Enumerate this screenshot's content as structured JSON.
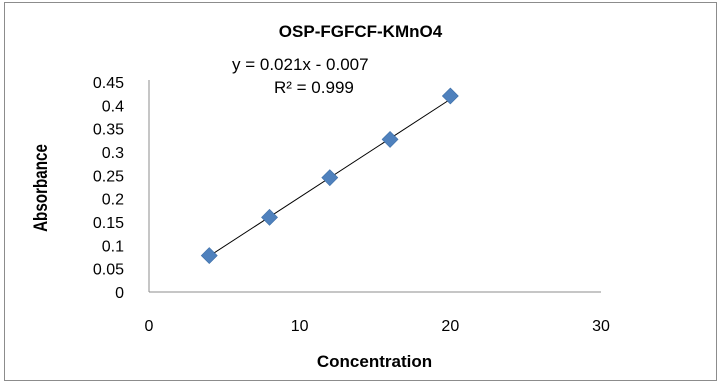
{
  "chart_data": {
    "type": "scatter",
    "title": "OSP-FGFCF-KMnO4",
    "xlabel": "Concentration",
    "ylabel": "Absorbance",
    "xlim": [
      0,
      30
    ],
    "ylim": [
      0,
      0.45
    ],
    "xticks": [
      "0",
      "10",
      "20",
      "30"
    ],
    "yticks": [
      "0",
      "0.05",
      "0.1",
      "0.15",
      "0.2",
      "0.25",
      "0.3",
      "0.35",
      "0.4",
      "0.45"
    ],
    "grid": false,
    "series": [
      {
        "x": [
          4,
          8,
          12,
          16,
          20
        ],
        "y": [
          0.078,
          0.16,
          0.245,
          0.327,
          0.42
        ],
        "marker": "diamond",
        "color": "#4f81bd"
      }
    ],
    "trendline": {
      "equation": "y = 0.021x - 0.007",
      "r_squared": "R² = 0.999",
      "slope": 0.021,
      "intercept": -0.007,
      "x_range": [
        4,
        20
      ],
      "color": "#000000"
    }
  }
}
